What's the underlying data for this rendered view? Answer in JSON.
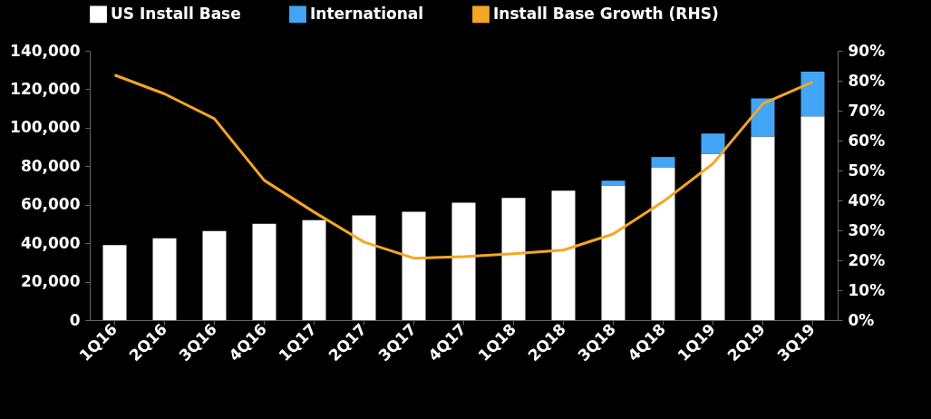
{
  "chart_data": {
    "type": "bar",
    "stacked": true,
    "legend": "top",
    "grid": false,
    "categories": [
      "1Q16",
      "2Q16",
      "3Q16",
      "4Q16",
      "1Q17",
      "2Q17",
      "3Q17",
      "4Q17",
      "1Q18",
      "2Q18",
      "3Q18",
      "4Q18",
      "1Q19",
      "2Q19",
      "3Q19"
    ],
    "series": [
      {
        "name": "US Install Base",
        "color": "#ffffff",
        "values": [
          39000,
          42500,
          46300,
          50100,
          52000,
          54400,
          56300,
          61000,
          63500,
          67300,
          70000,
          79200,
          86300,
          95500,
          106000
        ]
      },
      {
        "name": "International",
        "color": "#42a5f5",
        "values": [
          null,
          null,
          null,
          null,
          null,
          null,
          null,
          null,
          null,
          null,
          2500,
          5600,
          10700,
          19700,
          23200
        ]
      },
      {
        "name": "Install Base Growth (RHS)",
        "type": "line",
        "axis": "y2",
        "color": "#f5a623",
        "values": [
          81.9,
          75.6,
          67.3,
          46.7,
          36.1,
          26.1,
          20.7,
          21.2,
          22.2,
          23.4,
          28.8,
          39.6,
          52.3,
          72.3,
          79.6
        ]
      }
    ],
    "ylim": [
      0,
      140000
    ],
    "yticks": [
      0,
      {
        "value": 20000,
        "label": "20,000"
      },
      {
        "value": 40000,
        "label": "40,000"
      },
      {
        "value": 60000,
        "label": "60,000"
      },
      {
        "value": 80000,
        "label": "80,000"
      },
      {
        "value": 100000,
        "label": "100,000"
      },
      {
        "value": 120000,
        "label": "120,000"
      },
      {
        "value": 140000,
        "label": "140,000"
      }
    ],
    "y2lim": [
      0,
      90
    ],
    "y2ticks": [
      {
        "value": 0,
        "label": "0%"
      },
      {
        "value": 10,
        "label": "10%"
      },
      {
        "value": 20,
        "label": "20%"
      },
      {
        "value": 30,
        "label": "30%"
      },
      {
        "value": 40,
        "label": "40%"
      },
      {
        "value": 50,
        "label": "50%"
      },
      {
        "value": 60,
        "label": "60%"
      },
      {
        "value": 70,
        "label": "70%"
      },
      {
        "value": 80,
        "label": "80%"
      },
      {
        "value": 90,
        "label": "90%"
      }
    ]
  }
}
